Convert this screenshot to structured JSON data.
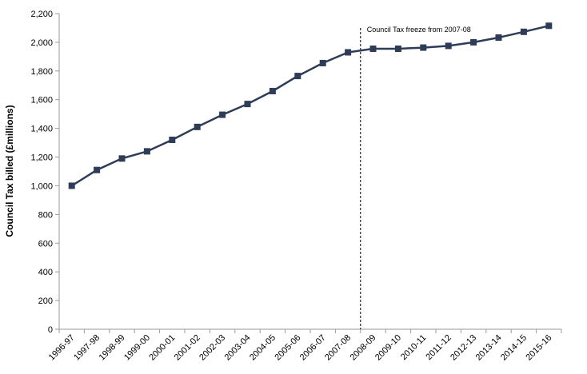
{
  "chart_data": {
    "type": "line",
    "title": "",
    "xlabel": "",
    "ylabel": "Council Tax billed (£millions)",
    "ylim": [
      0,
      2200
    ],
    "yticks": [
      0,
      200,
      400,
      600,
      800,
      1000,
      1200,
      1400,
      1600,
      1800,
      2000,
      2200
    ],
    "ytick_labels": [
      "0",
      "200",
      "400",
      "600",
      "800",
      "1,000",
      "1,200",
      "1,400",
      "1,600",
      "1,800",
      "2,000",
      "2,200"
    ],
    "grid": false,
    "legend": "none",
    "categories": [
      "1996-97",
      "1997-98",
      "1998-99",
      "1999-00",
      "2000-01",
      "2001-02",
      "2002-03",
      "2003-04",
      "2004-05",
      "2005-06",
      "2006-07",
      "2007-08",
      "2008-09",
      "2009-10",
      "2010-11",
      "2011-12",
      "2012-13",
      "2013-14",
      "2014-15",
      "2015-16"
    ],
    "series": [
      {
        "color": "#2e3c57",
        "marker": "square",
        "values": [
          1000,
          1110,
          1190,
          1240,
          1320,
          1410,
          1495,
          1570,
          1660,
          1765,
          1855,
          1930,
          1955,
          1955,
          1963,
          1975,
          2000,
          2033,
          2073,
          2115
        ]
      }
    ],
    "annotations": [
      {
        "text": "Council Tax freeze from 2007-08",
        "x_between": [
          "2007-08",
          "2008-09"
        ],
        "style": "dashed-vertical-line"
      }
    ]
  }
}
